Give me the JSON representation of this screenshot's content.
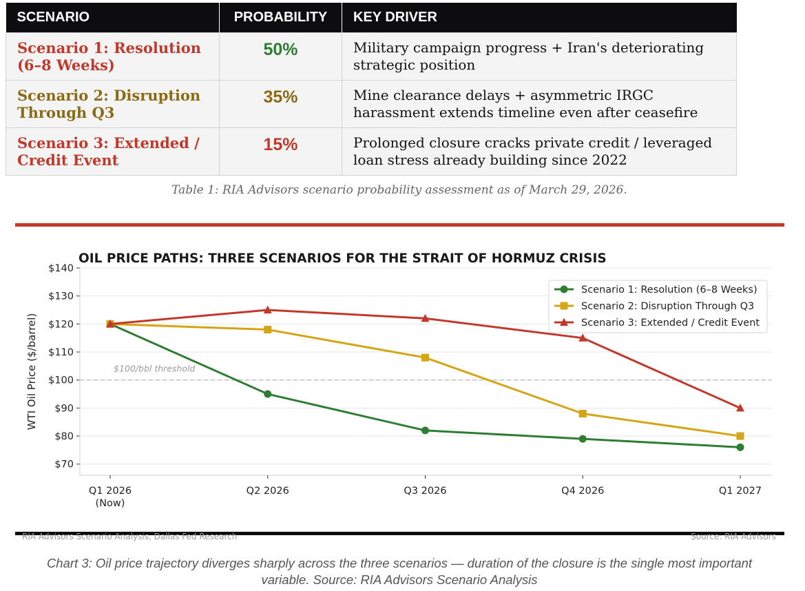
{
  "table": {
    "headers": {
      "scenario": "SCENARIO",
      "probability": "PROBABILITY",
      "driver": "KEY DRIVER"
    },
    "rows": [
      {
        "name_line1": "Scenario 1: Resolution",
        "name_line2": "(6–8 Weeks)",
        "probability": "50%",
        "driver_line1": "Military campaign progress + Iran's deteriorating",
        "driver_line2": "strategic position",
        "name_color": "#c0392b",
        "prob_color": "#2e7d32"
      },
      {
        "name_line1": "Scenario 2: Disruption",
        "name_line2": "Through Q3",
        "probability": "35%",
        "driver_line1": "Mine clearance delays + asymmetric IRGC",
        "driver_line2": "harassment extends timeline even after ceasefire",
        "name_color": "#8a6a14",
        "prob_color": "#8a6a14"
      },
      {
        "name_line1": "Scenario 3: Extended /",
        "name_line2": "Credit Event",
        "probability": "15%",
        "driver_line1": "Prolonged closure cracks private credit / leveraged",
        "driver_line2": "loan stress already building since 2022",
        "name_color": "#c0392b",
        "prob_color": "#c0392b"
      }
    ],
    "caption": "Table 1: RIA Advisors scenario probability assessment as of March 29, 2026."
  },
  "chart_data": {
    "type": "line",
    "title": "OIL PRICE PATHS: THREE SCENARIOS FOR THE STRAIT OF HORMUZ CRISIS",
    "ylabel": "WTI Oil Price ($/barrel)",
    "xlabel": "",
    "categories": [
      "Q1 2026",
      "Q2 2026",
      "Q3 2026",
      "Q4 2026",
      "Q1 2027"
    ],
    "category_sublabels": [
      "(Now)",
      "",
      "",
      "",
      ""
    ],
    "ylim": [
      66,
      140
    ],
    "yticks": [
      70,
      80,
      90,
      100,
      110,
      120,
      130,
      140
    ],
    "ytick_prefix": "$",
    "grid": true,
    "legend_position": "top-right",
    "series": [
      {
        "name": "Scenario 1: Resolution (6–8 Weeks)",
        "values": [
          120,
          95,
          82,
          79,
          76
        ],
        "color": "#2e7d32",
        "marker": "circle"
      },
      {
        "name": "Scenario 2: Disruption Through Q3",
        "values": [
          120,
          118,
          108,
          88,
          80
        ],
        "color": "#d4a514",
        "marker": "square"
      },
      {
        "name": "Scenario 3: Extended / Credit Event",
        "values": [
          120,
          125,
          122,
          115,
          90
        ],
        "color": "#c0392b",
        "marker": "triangle"
      }
    ],
    "threshold": {
      "value": 100,
      "label": "$100/bbl threshold"
    }
  },
  "chart_footer": {
    "left": "RIA Advisors Scenario Analysis, Dallas Fed Research",
    "right": "Source: RIA Advisors"
  },
  "chart_caption": {
    "line1": "Chart 3: Oil price trajectory diverges sharply across the three scenarios — duration of the closure is the single most important",
    "line2": "variable.  Source: RIA Advisors Scenario Analysis"
  }
}
